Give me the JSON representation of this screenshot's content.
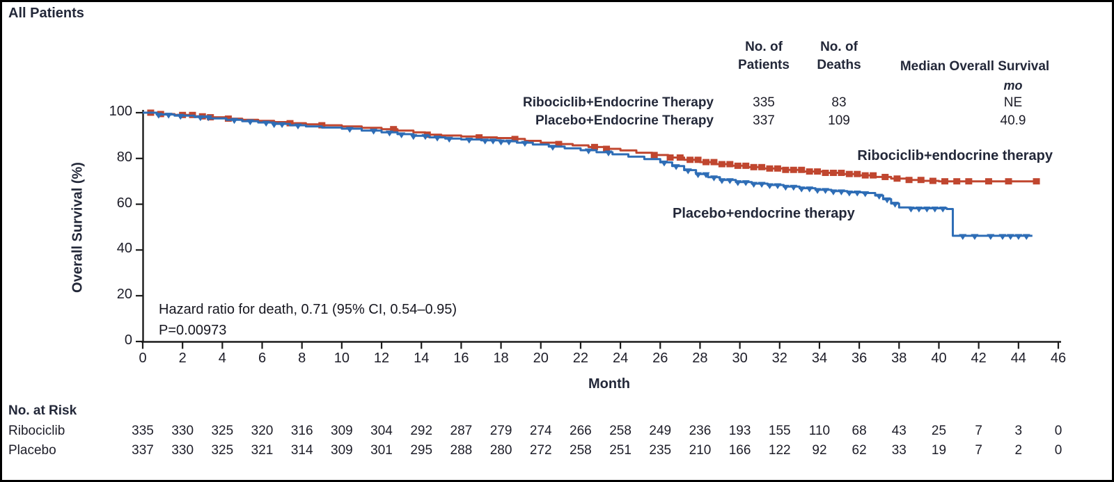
{
  "title": "All Patients",
  "colors": {
    "ribociclib": "#c0462f",
    "placebo": "#2e6db6",
    "axis": "#1a1a1a",
    "text": "#1d1d28",
    "heading": "#232839"
  },
  "summary_table": {
    "col_headers": [
      {
        "line1": "No. of",
        "line2": "Patients"
      },
      {
        "line1": "No. of",
        "line2": "Deaths"
      },
      {
        "line1": "Median Overall Survival",
        "line2": "mo"
      }
    ],
    "rows": [
      {
        "label": "Ribociclib+Endocrine Therapy",
        "patients": "335",
        "deaths": "83",
        "median": "NE"
      },
      {
        "label": "Placebo+Endocrine Therapy",
        "patients": "337",
        "deaths": "109",
        "median": "40.9"
      }
    ]
  },
  "annotation": {
    "line1": "Hazard ratio for death, 0.71 (95% CI, 0.54–0.95)",
    "line2": "P=0.00973"
  },
  "curve_labels": {
    "ribociclib": "Ribociclib+endocrine therapy",
    "placebo": "Placebo+endocrine therapy"
  },
  "axes": {
    "y_label": "Overall Survival (%)",
    "x_label": "Month",
    "y_ticks": [
      0,
      20,
      40,
      60,
      80,
      100
    ],
    "x_ticks": [
      0,
      2,
      4,
      6,
      8,
      10,
      12,
      14,
      16,
      18,
      20,
      22,
      24,
      26,
      28,
      30,
      32,
      34,
      36,
      38,
      40,
      42,
      44,
      46
    ]
  },
  "risk_table": {
    "heading": "No. at Risk",
    "rows": [
      {
        "label": "Ribociclib",
        "values": [
          335,
          330,
          325,
          320,
          316,
          309,
          304,
          292,
          287,
          279,
          274,
          266,
          258,
          249,
          236,
          193,
          155,
          110,
          68,
          43,
          25,
          7,
          3,
          0
        ]
      },
      {
        "label": "Placebo",
        "values": [
          337,
          330,
          325,
          321,
          314,
          309,
          301,
          295,
          288,
          280,
          272,
          258,
          251,
          235,
          210,
          166,
          122,
          92,
          62,
          33,
          19,
          7,
          2,
          0
        ]
      }
    ]
  },
  "chart_data": {
    "type": "line",
    "subtype": "kaplan-meier-step",
    "title": "All Patients",
    "xlabel": "Month",
    "ylabel": "Overall Survival (%)",
    "xlim": [
      0,
      46
    ],
    "ylim": [
      0,
      100
    ],
    "x_tick_step": 2,
    "legend_position": "labels-on-plot",
    "grid": false,
    "series": [
      {
        "name": "Ribociclib+endocrine therapy",
        "color": "#c0462f",
        "marker": "square",
        "n_patients": 335,
        "n_deaths": 83,
        "median_os_months": "NE",
        "steps": [
          [
            0,
            100
          ],
          [
            0.7,
            99.4
          ],
          [
            1.6,
            99
          ],
          [
            2.6,
            98.4
          ],
          [
            3.4,
            98
          ],
          [
            4.2,
            97.4
          ],
          [
            5,
            96.9
          ],
          [
            5.8,
            96.4
          ],
          [
            6.6,
            95.9
          ],
          [
            7.4,
            95.4
          ],
          [
            8.2,
            94.9
          ],
          [
            9,
            94.5
          ],
          [
            10,
            94
          ],
          [
            11,
            93.4
          ],
          [
            12,
            92.8
          ],
          [
            12.8,
            92.2
          ],
          [
            13.6,
            91.4
          ],
          [
            14.2,
            90.4
          ],
          [
            15,
            90
          ],
          [
            16,
            89.6
          ],
          [
            16.8,
            89.2
          ],
          [
            17.8,
            88.9
          ],
          [
            18.6,
            88.5
          ],
          [
            19.2,
            87.7
          ],
          [
            20,
            86.9
          ],
          [
            20.8,
            86.3
          ],
          [
            21.6,
            85.7
          ],
          [
            22.4,
            85
          ],
          [
            23.2,
            84.2
          ],
          [
            24,
            83.5
          ],
          [
            24.8,
            82.5
          ],
          [
            25.6,
            81.5
          ],
          [
            26.4,
            80.4
          ],
          [
            27.2,
            79.4
          ],
          [
            28,
            78.4
          ],
          [
            28.8,
            77.5
          ],
          [
            29.6,
            76.8
          ],
          [
            30.4,
            76.2
          ],
          [
            31.2,
            75.6
          ],
          [
            32.2,
            75
          ],
          [
            33.2,
            74.3
          ],
          [
            34.2,
            73.7
          ],
          [
            35.2,
            73.2
          ],
          [
            36,
            72.6
          ],
          [
            36.8,
            71.9
          ],
          [
            37.6,
            71.2
          ],
          [
            38.4,
            70.6
          ],
          [
            39.2,
            70.2
          ],
          [
            40,
            70
          ],
          [
            45,
            70
          ]
        ],
        "censor_months": [
          0.4,
          0.9,
          2.0,
          2.5,
          3.0,
          3.4,
          4.3,
          7.4,
          9.0,
          12.6,
          14.3,
          16.9,
          18.7,
          20.9,
          22.7,
          23.3,
          25.7,
          26.5,
          27.0,
          27.5,
          27.9,
          28.3,
          28.7,
          29.1,
          29.5,
          29.9,
          30.3,
          30.7,
          31.1,
          31.5,
          31.9,
          32.3,
          32.7,
          33.1,
          33.5,
          33.9,
          34.3,
          34.7,
          35.1,
          35.5,
          35.9,
          36.3,
          36.7,
          37.3,
          37.9,
          38.5,
          39.1,
          39.7,
          40.3,
          40.9,
          41.5,
          42.5,
          43.5,
          44.9
        ]
      },
      {
        "name": "Placebo+endocrine therapy",
        "color": "#2e6db6",
        "marker": "triangle-down",
        "n_patients": 337,
        "n_deaths": 109,
        "median_os_months": 40.9,
        "steps": [
          [
            0,
            100
          ],
          [
            0.7,
            99.2
          ],
          [
            1.6,
            98.7
          ],
          [
            2.6,
            98.1
          ],
          [
            3.4,
            97.5
          ],
          [
            4.2,
            96.9
          ],
          [
            5,
            96.3
          ],
          [
            5.8,
            95.7
          ],
          [
            6.6,
            95.1
          ],
          [
            7.4,
            94.5
          ],
          [
            8.2,
            94
          ],
          [
            9,
            93.5
          ],
          [
            10,
            93
          ],
          [
            11,
            92.2
          ],
          [
            12,
            91.4
          ],
          [
            12.8,
            90.6
          ],
          [
            13.6,
            89.9
          ],
          [
            14.4,
            89.2
          ],
          [
            15.2,
            88.7
          ],
          [
            16,
            88.3
          ],
          [
            17,
            87.9
          ],
          [
            18,
            87.5
          ],
          [
            18.8,
            86.9
          ],
          [
            19.6,
            86.1
          ],
          [
            20.4,
            85.2
          ],
          [
            21.2,
            84.4
          ],
          [
            22,
            83.6
          ],
          [
            22.8,
            82.7
          ],
          [
            23.6,
            81.8
          ],
          [
            24.4,
            80.8
          ],
          [
            25.2,
            79.7
          ],
          [
            26,
            78.3
          ],
          [
            26.6,
            76.7
          ],
          [
            27.2,
            74.9
          ],
          [
            27.8,
            73.2
          ],
          [
            28.4,
            71.8
          ],
          [
            29,
            70.6
          ],
          [
            29.8,
            69.7
          ],
          [
            30.6,
            69
          ],
          [
            31.4,
            68.4
          ],
          [
            32.2,
            67.7
          ],
          [
            33,
            67
          ],
          [
            33.8,
            66.3
          ],
          [
            34.6,
            65.7
          ],
          [
            35.4,
            65.2
          ],
          [
            36.2,
            64.9
          ],
          [
            36.8,
            63.8
          ],
          [
            37.2,
            62.2
          ],
          [
            37.6,
            60.3
          ],
          [
            38,
            58.6
          ],
          [
            38.6,
            58.2
          ],
          [
            40.4,
            57.9
          ],
          [
            40.7,
            46.2
          ],
          [
            44.7,
            46.2
          ]
        ],
        "censor_months": [
          0.8,
          1.3,
          1.9,
          2.9,
          3.3,
          4.6,
          5.4,
          6.2,
          6.6,
          7.0,
          7.8,
          10.4,
          11.6,
          12.4,
          13.0,
          13.6,
          14.2,
          14.8,
          15.4,
          16.4,
          17.2,
          17.6,
          18.0,
          18.4,
          19.2,
          20.6,
          22.4,
          23.4,
          26.2,
          26.8,
          27.4,
          27.9,
          28.3,
          28.7,
          29.1,
          29.5,
          29.9,
          30.3,
          30.7,
          31.1,
          31.5,
          31.9,
          32.3,
          32.7,
          33.1,
          33.5,
          33.9,
          34.3,
          34.7,
          35.1,
          35.5,
          35.9,
          36.3,
          37.0,
          37.4,
          37.8,
          38.6,
          39.0,
          39.4,
          39.8,
          40.2,
          41.2,
          41.8,
          42.6,
          43.2,
          43.6,
          44.0,
          44.4
        ]
      }
    ],
    "annotations": [
      "Hazard ratio for death, 0.71 (95% CI, 0.54–0.95)",
      "P=0.00973"
    ],
    "risk_table": {
      "months": [
        0,
        2,
        4,
        6,
        8,
        10,
        12,
        14,
        16,
        18,
        20,
        22,
        24,
        26,
        28,
        30,
        32,
        34,
        36,
        38,
        40,
        42,
        44,
        46
      ],
      "Ribociclib": [
        335,
        330,
        325,
        320,
        316,
        309,
        304,
        292,
        287,
        279,
        274,
        266,
        258,
        249,
        236,
        193,
        155,
        110,
        68,
        43,
        25,
        7,
        3,
        0
      ],
      "Placebo": [
        337,
        330,
        325,
        321,
        314,
        309,
        301,
        295,
        288,
        280,
        272,
        258,
        251,
        235,
        210,
        166,
        122,
        92,
        62,
        33,
        19,
        7,
        2,
        0
      ]
    }
  }
}
